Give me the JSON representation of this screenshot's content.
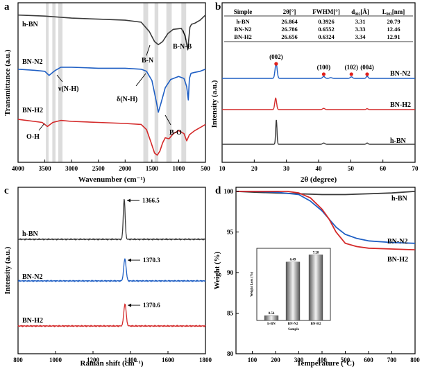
{
  "colors": {
    "hbn": "#3a3a3a",
    "n2": "#1f5fc4",
    "h2": "#d42a2a",
    "band": "#dcdcdc",
    "axis": "#000000",
    "marker": "#e0201b"
  },
  "chart_data": [
    {
      "panel": "a",
      "type": "line",
      "xlabel": "Wavenumber (cm⁻¹)",
      "ylabel": "Transmittance (a.u.)",
      "xlim": [
        4000,
        500
      ],
      "xticks": [
        "4000",
        "3500",
        "3000",
        "2500",
        "2000",
        "1500",
        "1000",
        "500"
      ],
      "shaded_bands": [
        [
          3480,
          3430
        ],
        [
          3360,
          3300
        ],
        [
          3250,
          3170
        ],
        [
          1660,
          1570
        ],
        [
          1450,
          1380
        ],
        [
          1230,
          1130
        ],
        [
          950,
          860
        ]
      ],
      "series": [
        {
          "name": "h-BN",
          "x": [
            4000,
            3500,
            3000,
            2500,
            2000,
            1700,
            1550,
            1450,
            1380,
            1300,
            1200,
            1100,
            950,
            880,
            830,
            790,
            760,
            700,
            600,
            500
          ],
          "y": [
            7.2,
            7.15,
            7.05,
            7.0,
            6.95,
            6.85,
            6.4,
            5.9,
            5.75,
            5.9,
            6.3,
            6.5,
            6.55,
            6.2,
            5.5,
            6.6,
            6.75,
            6.8,
            6.95,
            7.2
          ]
        },
        {
          "name": "BN-N2",
          "x": [
            4000,
            3700,
            3500,
            3420,
            3350,
            3300,
            3200,
            3000,
            2500,
            2000,
            1700,
            1600,
            1500,
            1420,
            1380,
            1330,
            1250,
            1150,
            1000,
            900,
            850,
            820,
            800,
            770,
            700,
            600,
            500
          ],
          "y": [
            4.55,
            4.5,
            4.45,
            4.25,
            4.4,
            4.5,
            4.65,
            4.65,
            4.6,
            4.6,
            4.55,
            4.45,
            4.0,
            3.0,
            2.45,
            2.9,
            3.65,
            4.05,
            4.2,
            4.1,
            3.7,
            3.05,
            4.1,
            4.35,
            4.4,
            4.45,
            4.55
          ]
        },
        {
          "name": "BN-H2",
          "x": [
            4000,
            3700,
            3550,
            3450,
            3350,
            3200,
            3000,
            2500,
            2000,
            1700,
            1600,
            1520,
            1450,
            1400,
            1350,
            1300,
            1250,
            1180,
            1100,
            1000,
            900,
            850,
            800,
            700,
            600,
            500
          ],
          "y": [
            2.1,
            2.0,
            1.95,
            1.75,
            1.95,
            2.05,
            2.0,
            1.95,
            1.9,
            1.85,
            1.6,
            1.0,
            0.45,
            0.35,
            0.55,
            0.95,
            1.2,
            1.15,
            1.4,
            1.55,
            1.4,
            1.05,
            1.35,
            1.55,
            1.7,
            1.85
          ]
        }
      ],
      "annotations": [
        "B-N",
        "B-N-B",
        "ν(N-H)",
        "δ(N-H)",
        "O-H",
        "B-O"
      ]
    },
    {
      "panel": "b",
      "type": "line",
      "xlabel": "2θ (degree)",
      "ylabel": "Intensity (a.u.)",
      "xlim": [
        10,
        70
      ],
      "xticks": [
        "10",
        "20",
        "30",
        "40",
        "50",
        "60",
        "70"
      ],
      "table": {
        "headers": [
          "Simple",
          "2θ[°]",
          "FWHM[°]",
          "d₀₀₂[Å]",
          "L₀₀₂[nm]"
        ],
        "rows": [
          [
            "h-BN",
            "26.864",
            "0.3926",
            "3.31",
            "20.79"
          ],
          [
            "BN-N2",
            "26.786",
            "0.6552",
            "3.33",
            "12.46"
          ],
          [
            "BN-H2",
            "26.656",
            "0.6324",
            "3.34",
            "12.91"
          ]
        ]
      },
      "peak_labels": [
        {
          "label": "(002)",
          "x": 26.8
        },
        {
          "label": "(100)",
          "x": 41.6
        },
        {
          "label": "(102)",
          "x": 50.2
        },
        {
          "label": "(004)",
          "x": 55.1
        }
      ],
      "series": [
        {
          "name": "BN-N2",
          "peaks": [
            {
              "x": 26.79,
              "h": 1.0,
              "w": 0.45
            },
            {
              "x": 41.6,
              "h": 0.12,
              "w": 0.5
            },
            {
              "x": 43.8,
              "h": 0.05,
              "w": 0.5
            },
            {
              "x": 50.2,
              "h": 0.1,
              "w": 0.5
            },
            {
              "x": 55.1,
              "h": 0.14,
              "w": 0.4
            }
          ]
        },
        {
          "name": "BN-H2",
          "peaks": [
            {
              "x": 26.66,
              "h": 0.75,
              "w": 0.4
            },
            {
              "x": 41.6,
              "h": 0.08,
              "w": 0.5
            },
            {
              "x": 55.1,
              "h": 0.06,
              "w": 0.4
            }
          ]
        },
        {
          "name": "h-BN",
          "peaks": [
            {
              "x": 26.86,
              "h": 1.6,
              "w": 0.28
            },
            {
              "x": 41.6,
              "h": 0.08,
              "w": 0.5
            },
            {
              "x": 55.1,
              "h": 0.08,
              "w": 0.4
            }
          ]
        }
      ]
    },
    {
      "panel": "c",
      "type": "line",
      "xlabel": "Raman shift (cm⁻¹)",
      "ylabel": "Intensity (a.u.)",
      "xlim": [
        800,
        1800
      ],
      "xticks": [
        "800",
        "1000",
        "1200",
        "1400",
        "1600",
        "1800"
      ],
      "series": [
        {
          "name": "h-BN",
          "peak": 1366.5,
          "peak_label": "1366.5",
          "height": 1.0,
          "width": 7
        },
        {
          "name": "BN-N2",
          "peak": 1370.3,
          "peak_label": "1370.3",
          "height": 0.55,
          "width": 9
        },
        {
          "name": "BN-H2",
          "peak": 1370.6,
          "peak_label": "1370.6",
          "height": 0.55,
          "width": 9
        }
      ]
    },
    {
      "panel": "d",
      "type": "line",
      "xlabel": "Temperature (°C)",
      "ylabel": "Weight (%)",
      "xlim": [
        30,
        800
      ],
      "ylim": [
        80,
        100.5
      ],
      "xticks": [
        "100",
        "200",
        "300",
        "400",
        "500",
        "600",
        "700",
        "800"
      ],
      "yticks": [
        "80",
        "85",
        "90",
        "95",
        "100"
      ],
      "series": [
        {
          "name": "h-BN",
          "x": [
            30,
            100,
            200,
            300,
            400,
            500,
            600,
            700,
            800
          ],
          "y": [
            100.0,
            99.9,
            99.8,
            99.7,
            99.6,
            99.6,
            99.7,
            99.8,
            100.0
          ]
        },
        {
          "name": "BN-N2",
          "x": [
            30,
            100,
            200,
            300,
            350,
            400,
            430,
            460,
            500,
            550,
            600,
            700,
            800
          ],
          "y": [
            100.0,
            100.0,
            99.9,
            99.6,
            98.8,
            97.6,
            96.6,
            95.6,
            94.7,
            94.2,
            93.9,
            93.7,
            93.6
          ]
        },
        {
          "name": "BN-H2",
          "x": [
            30,
            100,
            200,
            250,
            300,
            350,
            400,
            430,
            460,
            500,
            550,
            600,
            700,
            800
          ],
          "y": [
            100.0,
            100.0,
            100.0,
            100.0,
            99.8,
            99.2,
            97.8,
            96.6,
            95.0,
            93.6,
            93.2,
            93.0,
            92.9,
            92.8
          ]
        }
      ],
      "inset": {
        "type": "bar",
        "ylabel": "Weight Loss (%)",
        "xlabel": "Sample",
        "ylim": [
          0,
          8
        ],
        "categories": [
          "h-BN",
          "BN-N2",
          "BN-H2"
        ],
        "values": [
          0.54,
          6.49,
          7.28
        ],
        "value_labels": [
          "0.54",
          "6.49",
          "7.28"
        ]
      }
    }
  ]
}
